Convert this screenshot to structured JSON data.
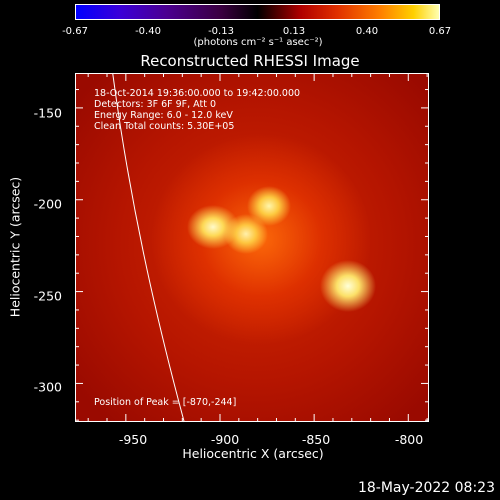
{
  "colorbar": {
    "ticks": [
      "-0.67",
      "-0.40",
      "-0.13",
      "0.13",
      "0.40",
      "0.67"
    ],
    "unit": "(photons cm⁻² s⁻¹ asec⁻²)",
    "colors": [
      "#0000ff",
      "#4b0090",
      "#000000",
      "#b00000",
      "#ff8000",
      "#ffffb0"
    ]
  },
  "plot": {
    "title": "Reconstructed RHESSI Image",
    "info": [
      "18-Oct-2014 19:36:00.000 to 19:42:00.000",
      "Detectors: 3F 6F 9F, Att 0",
      "Energy Range: 6.0 - 12.0 keV",
      "Clean    Total counts: 5.30E+05"
    ],
    "peak_label": "Position of Peak = [-870,-244]"
  },
  "axes": {
    "xlabel": "Heliocentric X (arcsec)",
    "ylabel": "Heliocentric Y (arcsec)",
    "xticks": [
      "-950",
      "-900",
      "-850",
      "-800"
    ],
    "yticks": [
      "-150",
      "-200",
      "-250",
      "-300"
    ],
    "xlim": [
      -977,
      -789
    ],
    "ylim": [
      -321,
      -131
    ]
  },
  "peak": {
    "x": -870,
    "y": -244
  },
  "limb_curve": [
    [
      -957,
      -131
    ],
    [
      -948,
      -200
    ],
    [
      -935,
      -260
    ],
    [
      -919,
      -321
    ]
  ],
  "datestamp": "18-May-2022 08:23"
}
